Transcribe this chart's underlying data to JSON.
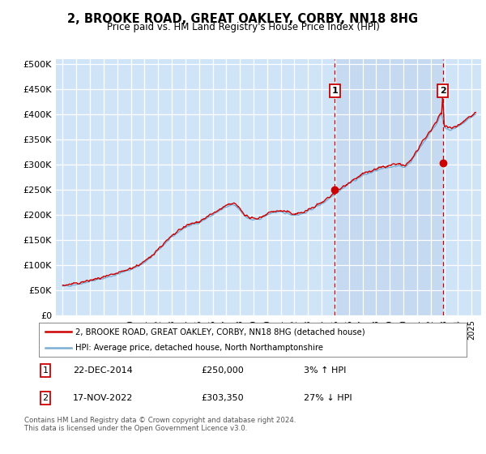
{
  "title": "2, BROOKE ROAD, GREAT OAKLEY, CORBY, NN18 8HG",
  "subtitle": "Price paid vs. HM Land Registry's House Price Index (HPI)",
  "ylabel_ticks": [
    "£0",
    "£50K",
    "£100K",
    "£150K",
    "£200K",
    "£250K",
    "£300K",
    "£350K",
    "£400K",
    "£450K",
    "£500K"
  ],
  "ytick_values": [
    0,
    50000,
    100000,
    150000,
    200000,
    250000,
    300000,
    350000,
    400000,
    450000,
    500000
  ],
  "ylim": [
    0,
    510000
  ],
  "xlim_start": 1994.5,
  "xlim_end": 2025.7,
  "background_color": "#dce9f5",
  "plot_bg_color": "#d0e4f7",
  "shade_color": "#c5d9f0",
  "grid_color": "#ffffff",
  "sale1_year": 2014.97,
  "sale1_price": 250000,
  "sale2_year": 2022.88,
  "sale2_price": 303350,
  "legend_line1": "2, BROOKE ROAD, GREAT OAKLEY, CORBY, NN18 8HG (detached house)",
  "legend_line2": "HPI: Average price, detached house, North Northamptonshire",
  "table_row1": [
    "1",
    "22-DEC-2014",
    "£250,000",
    "3% ↑ HPI"
  ],
  "table_row2": [
    "2",
    "17-NOV-2022",
    "£303,350",
    "27% ↓ HPI"
  ],
  "footnote": "Contains HM Land Registry data © Crown copyright and database right 2024.\nThis data is licensed under the Open Government Licence v3.0.",
  "hpi_color": "#7aaed4",
  "price_color": "#cc0000",
  "dashed_line_color": "#cc0000",
  "marker_color": "#cc0000",
  "box_color": "#cc0000",
  "hpi_base_points": [
    [
      1995.0,
      58000
    ],
    [
      1996.0,
      62000
    ],
    [
      1997.0,
      68000
    ],
    [
      1998.0,
      74000
    ],
    [
      1999.0,
      82000
    ],
    [
      2000.0,
      92000
    ],
    [
      2001.0,
      105000
    ],
    [
      2002.0,
      130000
    ],
    [
      2003.0,
      155000
    ],
    [
      2004.0,
      175000
    ],
    [
      2005.0,
      185000
    ],
    [
      2006.0,
      200000
    ],
    [
      2007.0,
      215000
    ],
    [
      2007.5,
      220000
    ],
    [
      2008.0,
      210000
    ],
    [
      2008.5,
      195000
    ],
    [
      2009.0,
      190000
    ],
    [
      2009.5,
      193000
    ],
    [
      2010.0,
      200000
    ],
    [
      2010.5,
      205000
    ],
    [
      2011.0,
      205000
    ],
    [
      2011.5,
      203000
    ],
    [
      2012.0,
      200000
    ],
    [
      2012.5,
      202000
    ],
    [
      2013.0,
      207000
    ],
    [
      2013.5,
      215000
    ],
    [
      2014.0,
      222000
    ],
    [
      2014.97,
      242000
    ],
    [
      2015.5,
      252000
    ],
    [
      2016.0,
      262000
    ],
    [
      2016.5,
      270000
    ],
    [
      2017.0,
      278000
    ],
    [
      2017.5,
      283000
    ],
    [
      2018.0,
      288000
    ],
    [
      2018.5,
      292000
    ],
    [
      2019.0,
      295000
    ],
    [
      2019.5,
      298000
    ],
    [
      2020.0,
      295000
    ],
    [
      2020.5,
      305000
    ],
    [
      2021.0,
      325000
    ],
    [
      2021.5,
      345000
    ],
    [
      2022.0,
      365000
    ],
    [
      2022.5,
      385000
    ],
    [
      2022.75,
      400000
    ],
    [
      2022.88,
      390000
    ],
    [
      2023.0,
      375000
    ],
    [
      2023.5,
      370000
    ],
    [
      2024.0,
      375000
    ],
    [
      2024.5,
      385000
    ],
    [
      2025.0,
      395000
    ],
    [
      2025.3,
      400000
    ]
  ]
}
